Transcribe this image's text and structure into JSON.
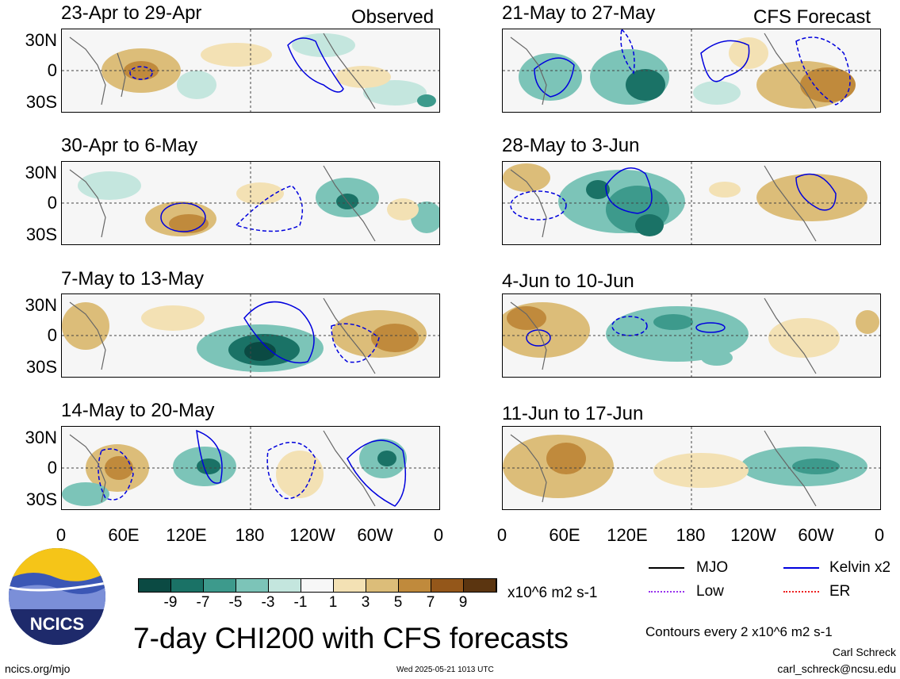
{
  "panels": [
    {
      "title": "23-Apr to 29-Apr",
      "tag": "Observed"
    },
    {
      "title": "21-May to 27-May",
      "tag": "CFS Forecast"
    },
    {
      "title": "30-Apr to 6-May",
      "tag": ""
    },
    {
      "title": "28-May to 3-Jun",
      "tag": ""
    },
    {
      "title": "7-May to 13-May",
      "tag": ""
    },
    {
      "title": "4-Jun to 10-Jun",
      "tag": ""
    },
    {
      "title": "14-May to 20-May",
      "tag": ""
    },
    {
      "title": "11-Jun to 17-Jun",
      "tag": ""
    }
  ],
  "axes": {
    "lat_labels": [
      "30N",
      "0",
      "30S"
    ],
    "lon_labels": [
      "0",
      "60E",
      "120E",
      "180",
      "120W",
      "60W",
      "0"
    ]
  },
  "colorbar": {
    "labels": [
      "-9",
      "-7",
      "-5",
      "-3",
      "-1",
      "1",
      "3",
      "5",
      "7",
      "9"
    ],
    "colors": [
      "#0b4a43",
      "#1a7266",
      "#3d9a8c",
      "#7cc4b8",
      "#c4e6de",
      "#f7f7f7",
      "#f3e1b4",
      "#dcbd79",
      "#c08a3c",
      "#94571a",
      "#5b3510"
    ],
    "units": "x10^6 m2 s-1"
  },
  "title": "7-day CHI200 with CFS forecasts",
  "logo": {
    "text": "NCICS"
  },
  "legend": {
    "items": [
      {
        "label": "MJO",
        "color": "#000000"
      },
      {
        "label": "Kelvin x2",
        "color": "#0000dd"
      },
      {
        "label": "Low",
        "color": "#9933ee"
      },
      {
        "label": "ER",
        "color": "#ee2222"
      }
    ],
    "contour_note": "Contours every 2 x10^6 m2 s-1"
  },
  "footer": {
    "url": "ncics.org/mjo",
    "timestamp": "Wed 2025-05-21 1013 UTC",
    "author": "Carl Schreck",
    "email": "carl_schreck@ncsu.edu"
  }
}
